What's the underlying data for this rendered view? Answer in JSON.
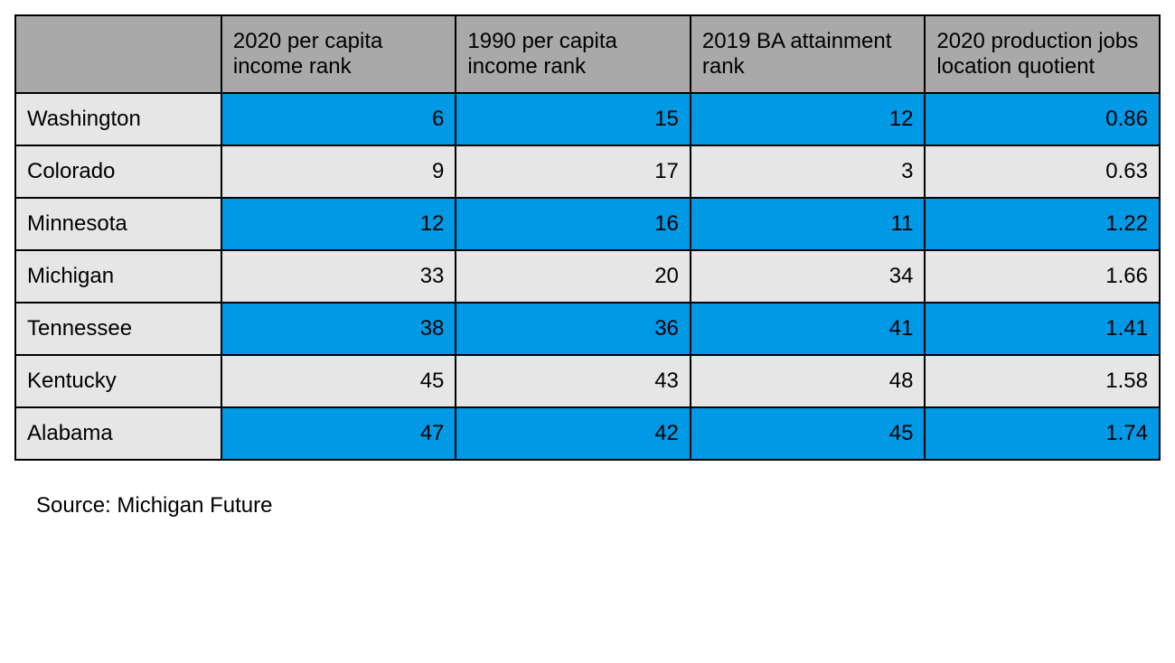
{
  "table": {
    "type": "table",
    "columns": [
      "",
      "2020 per capita income rank",
      "1990 per capita income rank",
      "2019 BA attainment rank",
      "2020 production jobs location quotient"
    ],
    "header_bg": "#a9a9a9",
    "row_label_bg": "#e6e6e6",
    "alt_row_bg_blue": "#0099e6",
    "alt_row_bg_light": "#e6e6e6",
    "border_color": "#000000",
    "font_size": 24,
    "rows": [
      {
        "label": "Washington",
        "values": [
          "6",
          "15",
          "12",
          "0.86"
        ],
        "color": "blue"
      },
      {
        "label": "Colorado",
        "values": [
          "9",
          "17",
          "3",
          "0.63"
        ],
        "color": "light"
      },
      {
        "label": "Minnesota",
        "values": [
          "12",
          "16",
          "11",
          "1.22"
        ],
        "color": "blue"
      },
      {
        "label": "Michigan",
        "values": [
          "33",
          "20",
          "34",
          "1.66"
        ],
        "color": "light"
      },
      {
        "label": "Tennessee",
        "values": [
          "38",
          "36",
          "41",
          "1.41"
        ],
        "color": "blue"
      },
      {
        "label": "Kentucky",
        "values": [
          "45",
          "43",
          "48",
          "1.58"
        ],
        "color": "light"
      },
      {
        "label": "Alabama",
        "values": [
          "47",
          "42",
          "45",
          "1.74"
        ],
        "color": "blue"
      }
    ]
  },
  "source": "Source: Michigan Future"
}
